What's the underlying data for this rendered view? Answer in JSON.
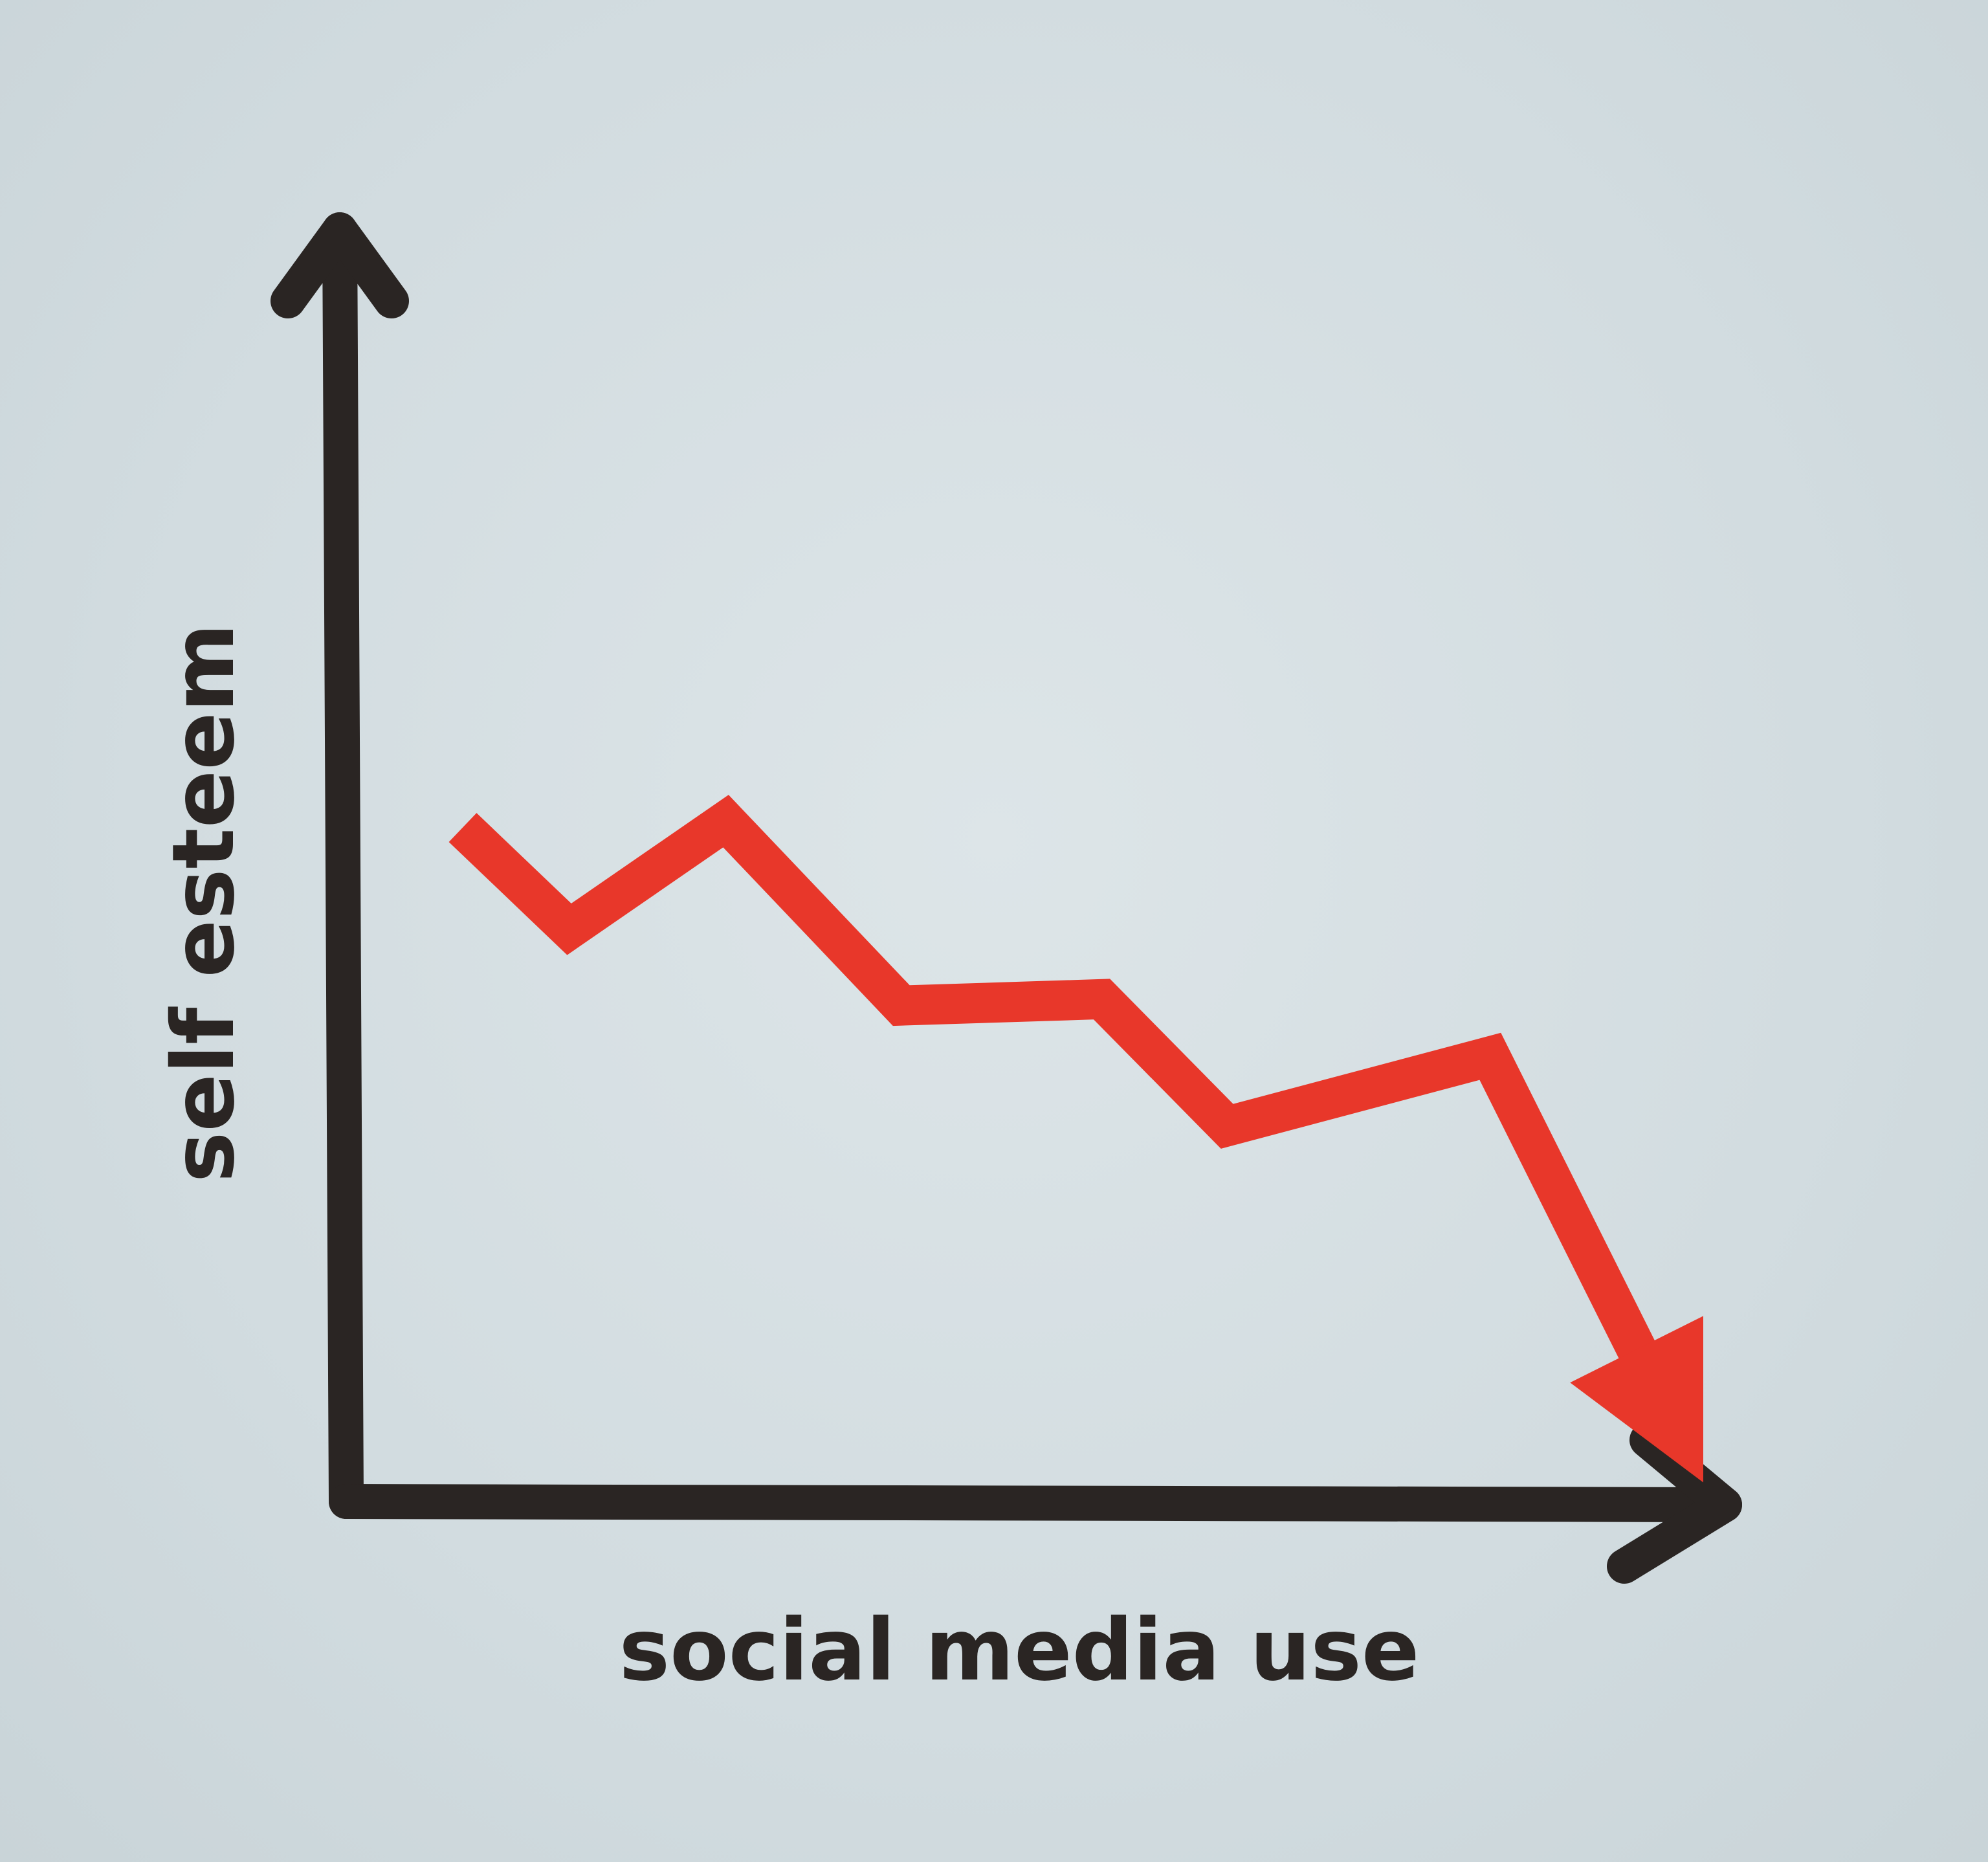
{
  "chart_data": {
    "type": "line",
    "xlabel": "social media use",
    "ylabel": "self esteem",
    "grid": false,
    "legend": "none",
    "trend": "downward",
    "series": [
      {
        "x": [
          0,
          0.85,
          2.1,
          3.5,
          5.1,
          6.1,
          8.2,
          9.9
        ],
        "values": [
          5.3,
          4.5,
          5.35,
          3.9,
          3.95,
          2.95,
          3.5,
          0.15
        ]
      }
    ]
  },
  "colors": {
    "background": "#d3dde1",
    "axis": "#2a2523",
    "trend_line": "#e8372a"
  },
  "icons": {
    "y_axis_arrow": "arrow-up-icon",
    "x_axis_arrow": "arrow-right-icon",
    "trend_arrow": "arrow-down-right-icon"
  }
}
